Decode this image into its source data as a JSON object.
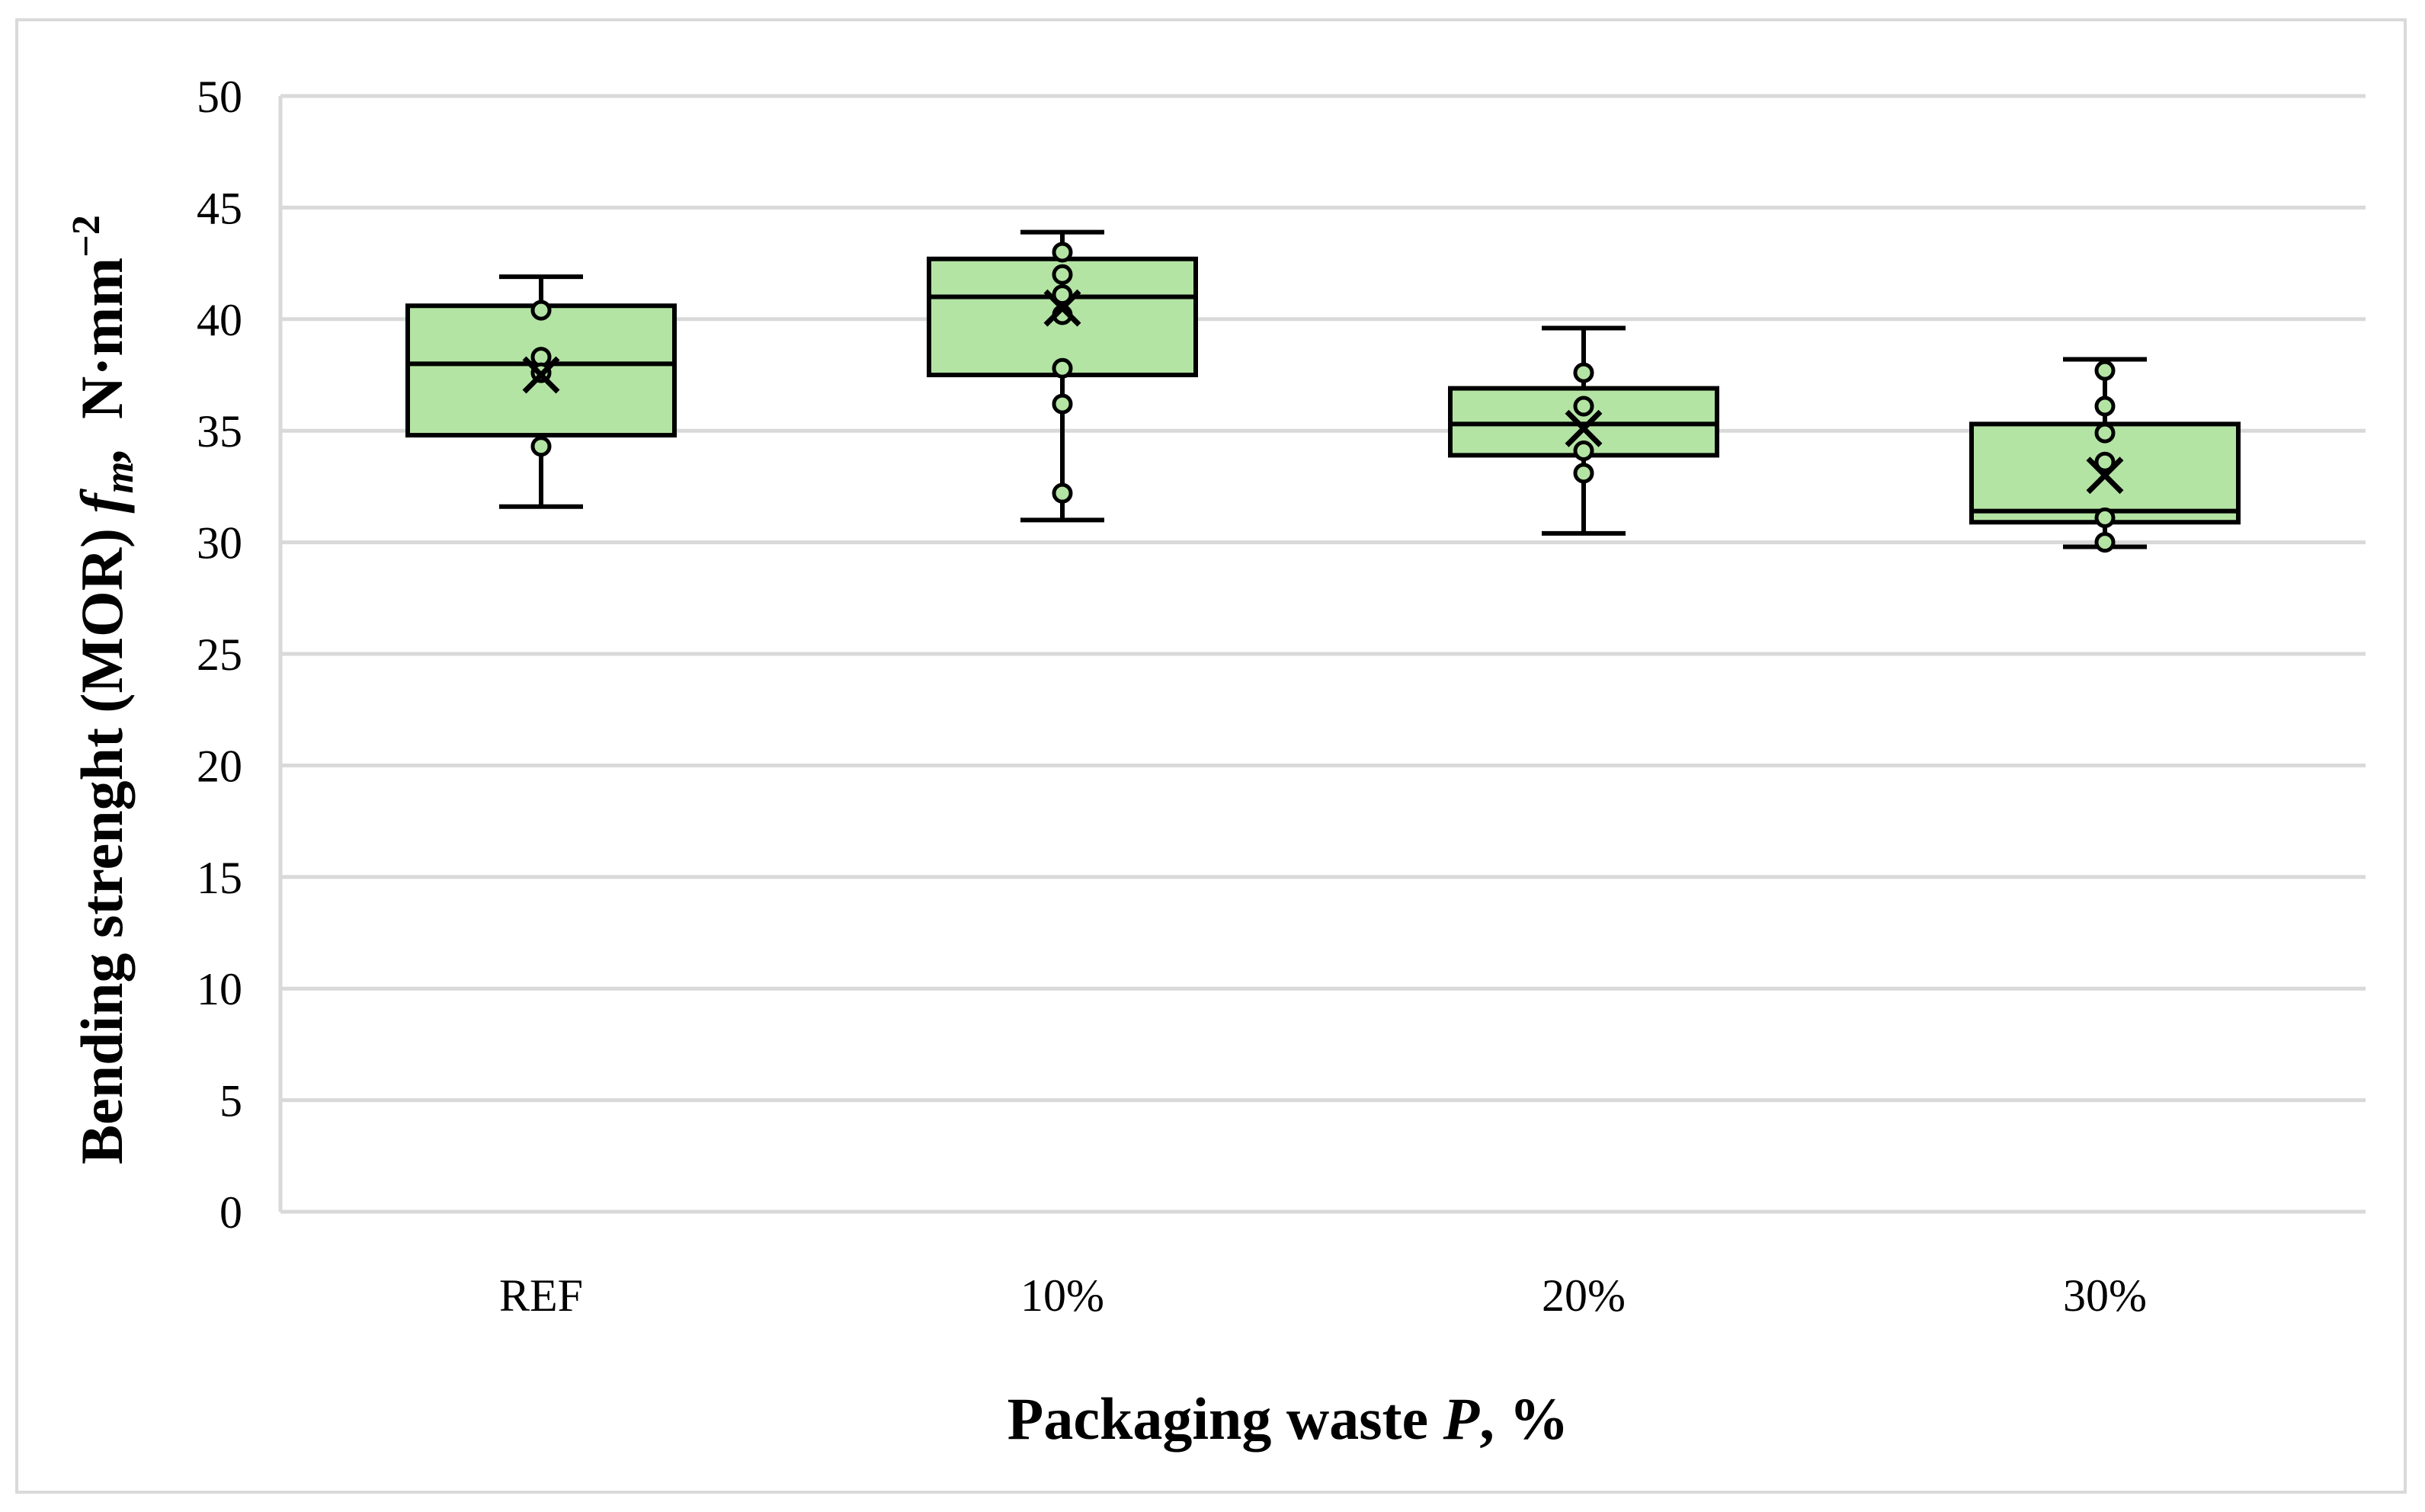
{
  "chart_data": {
    "type": "box",
    "title": "",
    "xlabel": {
      "main": "Packaging waste ",
      "italic": "P",
      "suffix": ", %"
    },
    "ylabel": {
      "main": "Bending strenght (MOR) ",
      "italic": "f",
      "subscript": "m",
      "comma": ",",
      "unit": "N·mm",
      "unit_sup": "−2"
    },
    "ylim": [
      0,
      50
    ],
    "yticks": [
      0,
      5,
      10,
      15,
      20,
      25,
      30,
      35,
      40,
      45,
      50
    ],
    "grid": true,
    "legend": "none",
    "box_fill": "#b4e4a4",
    "point_fill": "#b4e4a4",
    "stroke": "#000000",
    "categories": [
      "REF",
      "10%",
      "20%",
      "30%"
    ],
    "boxes": [
      {
        "category": "REF",
        "min": 31.6,
        "q1": 34.8,
        "median": 38.0,
        "q3": 40.6,
        "max": 41.9,
        "mean": 37.5,
        "points": [
          40.4,
          38.3,
          37.6,
          34.3
        ]
      },
      {
        "category": "10%",
        "min": 31.0,
        "q1": 37.5,
        "median": 41.0,
        "q3": 42.7,
        "max": 43.9,
        "mean": 40.5,
        "points": [
          43.0,
          42.0,
          41.1,
          40.2,
          37.8,
          36.2,
          32.2
        ]
      },
      {
        "category": "20%",
        "min": 30.4,
        "q1": 33.9,
        "median": 35.3,
        "q3": 36.9,
        "max": 39.6,
        "mean": 35.1,
        "points": [
          37.6,
          36.1,
          34.1,
          33.1
        ]
      },
      {
        "category": "30%",
        "min": 29.8,
        "q1": 30.9,
        "median": 31.4,
        "q3": 35.3,
        "max": 38.2,
        "mean": 33.0,
        "points": [
          37.7,
          36.1,
          34.9,
          33.6,
          31.1,
          30.0
        ]
      }
    ]
  }
}
